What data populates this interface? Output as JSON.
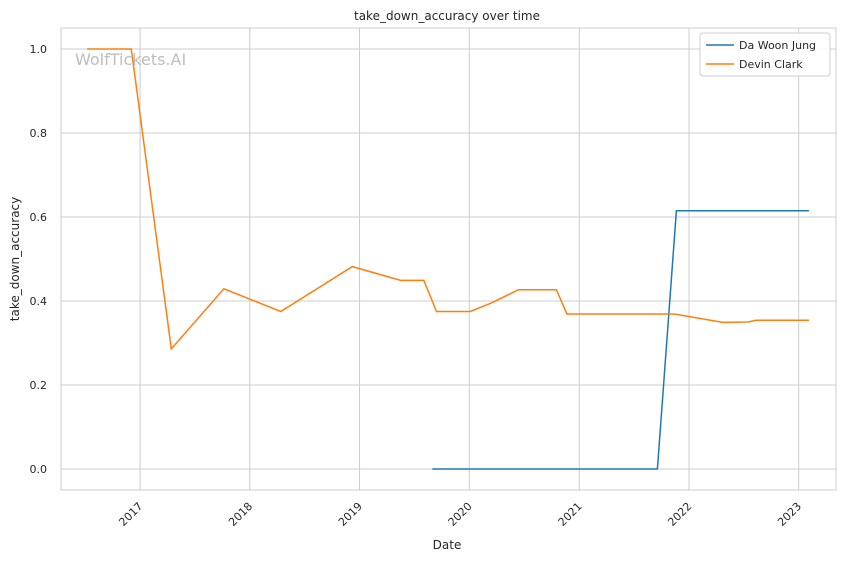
{
  "chart_data": {
    "type": "line",
    "title": "take_down_accuracy over time",
    "xlabel": "Date",
    "ylabel": "take_down_accuracy",
    "watermark": "WolfTickets.AI",
    "xlim": [
      "2016-04-13",
      "2023-05-05"
    ],
    "ylim": [
      -0.05,
      1.05
    ],
    "x_ticks": [
      "2017",
      "2018",
      "2019",
      "2020",
      "2021",
      "2022",
      "2023"
    ],
    "x_tick_dates": [
      "2017-01-01",
      "2018-01-01",
      "2019-01-01",
      "2020-01-01",
      "2021-01-01",
      "2022-01-01",
      "2023-01-01"
    ],
    "y_ticks": [
      "0.0",
      "0.2",
      "0.4",
      "0.6",
      "0.8",
      "1.0"
    ],
    "y_tick_values": [
      0.0,
      0.2,
      0.4,
      0.6,
      0.8,
      1.0
    ],
    "grid": true,
    "legend_position": "top-right",
    "series": [
      {
        "name": "Da Woon Jung",
        "color": "#1f77b4",
        "points": [
          {
            "x": "2019-08-31",
            "y": 0.0
          },
          {
            "x": "2021-09-18",
            "y": 0.0
          },
          {
            "x": "2021-11-20",
            "y": 0.615
          },
          {
            "x": "2023-02-04",
            "y": 0.615
          }
        ]
      },
      {
        "name": "Devin Clark",
        "color": "#ff7f0e",
        "points": [
          {
            "x": "2016-07-08",
            "y": 1.0
          },
          {
            "x": "2016-12-03",
            "y": 1.0
          },
          {
            "x": "2017-04-15",
            "y": 0.286
          },
          {
            "x": "2017-10-07",
            "y": 0.429
          },
          {
            "x": "2018-04-14",
            "y": 0.375
          },
          {
            "x": "2018-12-08",
            "y": 0.482
          },
          {
            "x": "2019-05-18",
            "y": 0.449
          },
          {
            "x": "2019-08-03",
            "y": 0.449
          },
          {
            "x": "2019-09-14",
            "y": 0.375
          },
          {
            "x": "2020-01-04",
            "y": 0.375
          },
          {
            "x": "2020-03-14",
            "y": 0.395
          },
          {
            "x": "2020-06-13",
            "y": 0.427
          },
          {
            "x": "2020-10-17",
            "y": 0.427
          },
          {
            "x": "2020-11-21",
            "y": 0.369
          },
          {
            "x": "2021-11-13",
            "y": 0.369
          },
          {
            "x": "2022-04-23",
            "y": 0.349
          },
          {
            "x": "2022-07-16",
            "y": 0.35
          },
          {
            "x": "2022-08-13",
            "y": 0.354
          },
          {
            "x": "2023-02-04",
            "y": 0.354
          }
        ]
      }
    ]
  }
}
